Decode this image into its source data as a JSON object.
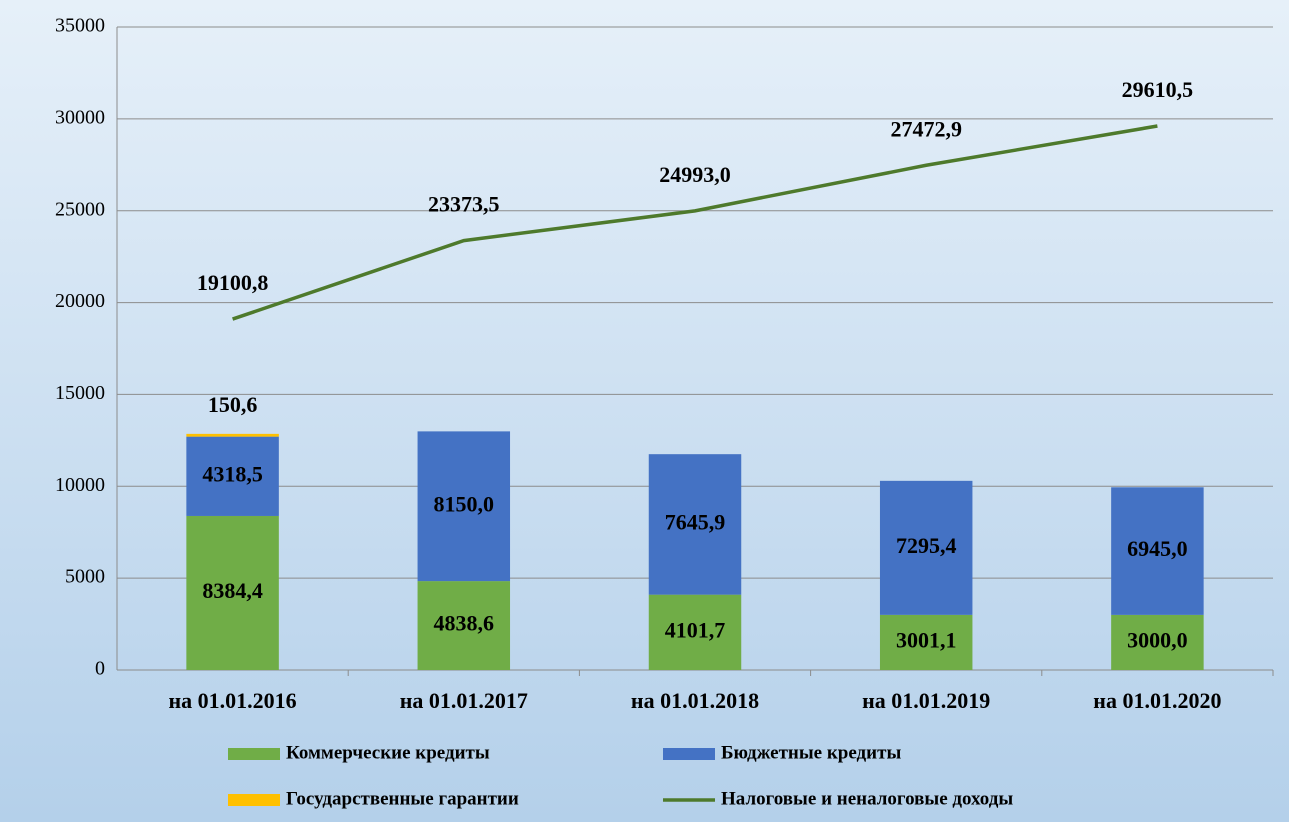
{
  "chart_data": {
    "type": "bar",
    "stacked": true,
    "categories": [
      "на 01.01.2016",
      "на 01.01.2017",
      "на 01.01.2018",
      "на 01.01.2019",
      "на 01.01.2020"
    ],
    "series": [
      {
        "name": "Коммерческие кредиты",
        "color": "#70ad47",
        "values": [
          8384.4,
          4838.6,
          4101.7,
          3001.1,
          3000.0
        ],
        "value_labels": [
          "8384,4",
          "4838,6",
          "4101,7",
          "3001,1",
          "3000,0"
        ]
      },
      {
        "name": "Бюджетные кредиты",
        "color": "#4472c4",
        "values": [
          4318.5,
          8150.0,
          7645.9,
          7295.4,
          6945.0
        ],
        "value_labels": [
          "4318,5",
          "8150,0",
          "7645,9",
          "7295,4",
          "6945,0"
        ]
      },
      {
        "name": "Государственные гарантии",
        "color": "#ffc000",
        "values": [
          150.6,
          null,
          null,
          null,
          null
        ],
        "value_labels": [
          "150,6",
          null,
          null,
          null,
          null
        ]
      },
      {
        "name": "Налоговые и неналоговые доходы",
        "color": "#4e7a2c",
        "type": "line",
        "values": [
          19100.8,
          23373.5,
          24993.0,
          27472.9,
          29610.5
        ],
        "value_labels": [
          "19100,8",
          "23373,5",
          "24993,0",
          "27472,9",
          "29610,5"
        ]
      }
    ],
    "ylim": [
      0,
      35000
    ],
    "yticks": [
      0,
      5000,
      10000,
      15000,
      20000,
      25000,
      30000,
      35000
    ],
    "grid": true
  }
}
